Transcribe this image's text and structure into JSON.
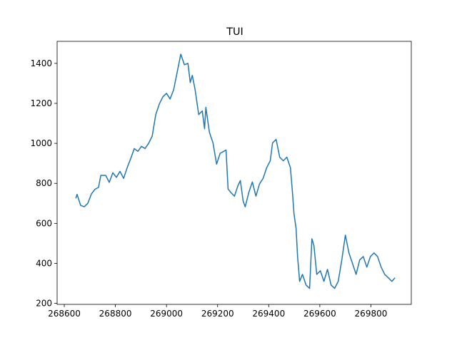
{
  "chart_data": {
    "type": "line",
    "title": "TUI",
    "x": [
      268645,
      268650,
      268664,
      268678,
      268692,
      268706,
      268720,
      268734,
      268743,
      268762,
      268776,
      268790,
      268804,
      268818,
      268832,
      268846,
      268860,
      268874,
      268888,
      268902,
      268916,
      268930,
      268944,
      268958,
      268972,
      268986,
      269000,
      269014,
      269028,
      269042,
      269056,
      269070,
      269084,
      269093,
      269101,
      269112,
      269126,
      269140,
      269149,
      269154,
      269168,
      269182,
      269196,
      269210,
      269224,
      269233,
      269241,
      269252,
      269266,
      269280,
      269289,
      269300,
      269308,
      269322,
      269336,
      269350,
      269364,
      269378,
      269392,
      269406,
      269415,
      269429,
      269443,
      269457,
      269471,
      269485,
      269493,
      269499,
      269507,
      269513,
      269521,
      269532,
      269546,
      269560,
      269569,
      269577,
      269588,
      269602,
      269616,
      269630,
      269644,
      269658,
      269672,
      269686,
      269700,
      269714,
      269728,
      269742,
      269756,
      269770,
      269784,
      269798,
      269812,
      269826,
      269840,
      269854,
      269868,
      269882,
      269894
    ],
    "series": [
      {
        "name": "TUI",
        "color": "#1f77b4",
        "values": [
          725,
          745,
          690,
          683,
          700,
          747,
          770,
          780,
          840,
          840,
          805,
          853,
          830,
          860,
          825,
          878,
          924,
          974,
          960,
          985,
          974,
          1000,
          1036,
          1144,
          1197,
          1233,
          1250,
          1222,
          1268,
          1357,
          1446,
          1393,
          1400,
          1304,
          1340,
          1268,
          1144,
          1162,
          1073,
          1180,
          1055,
          1002,
          896,
          950,
          960,
          967,
          772,
          754,
          736,
          790,
          814,
          711,
          683,
          754,
          807,
          736,
          797,
          825,
          878,
          913,
          1002,
          1020,
          931,
          913,
          931,
          878,
          754,
          647,
          576,
          434,
          310,
          345,
          292,
          275,
          523,
          488,
          345,
          363,
          310,
          370,
          292,
          275,
          310,
          417,
          541,
          452,
          399,
          345,
          417,
          434,
          381,
          434,
          452,
          434,
          381,
          345,
          328,
          310,
          328
        ]
      }
    ],
    "xlim": [
      268572,
      269958
    ],
    "ylim": [
      195,
      1510
    ],
    "xticks": [
      268600,
      268800,
      269000,
      269200,
      269400,
      269600,
      269800
    ],
    "yticks": [
      200,
      400,
      600,
      800,
      1000,
      1200,
      1400
    ]
  }
}
